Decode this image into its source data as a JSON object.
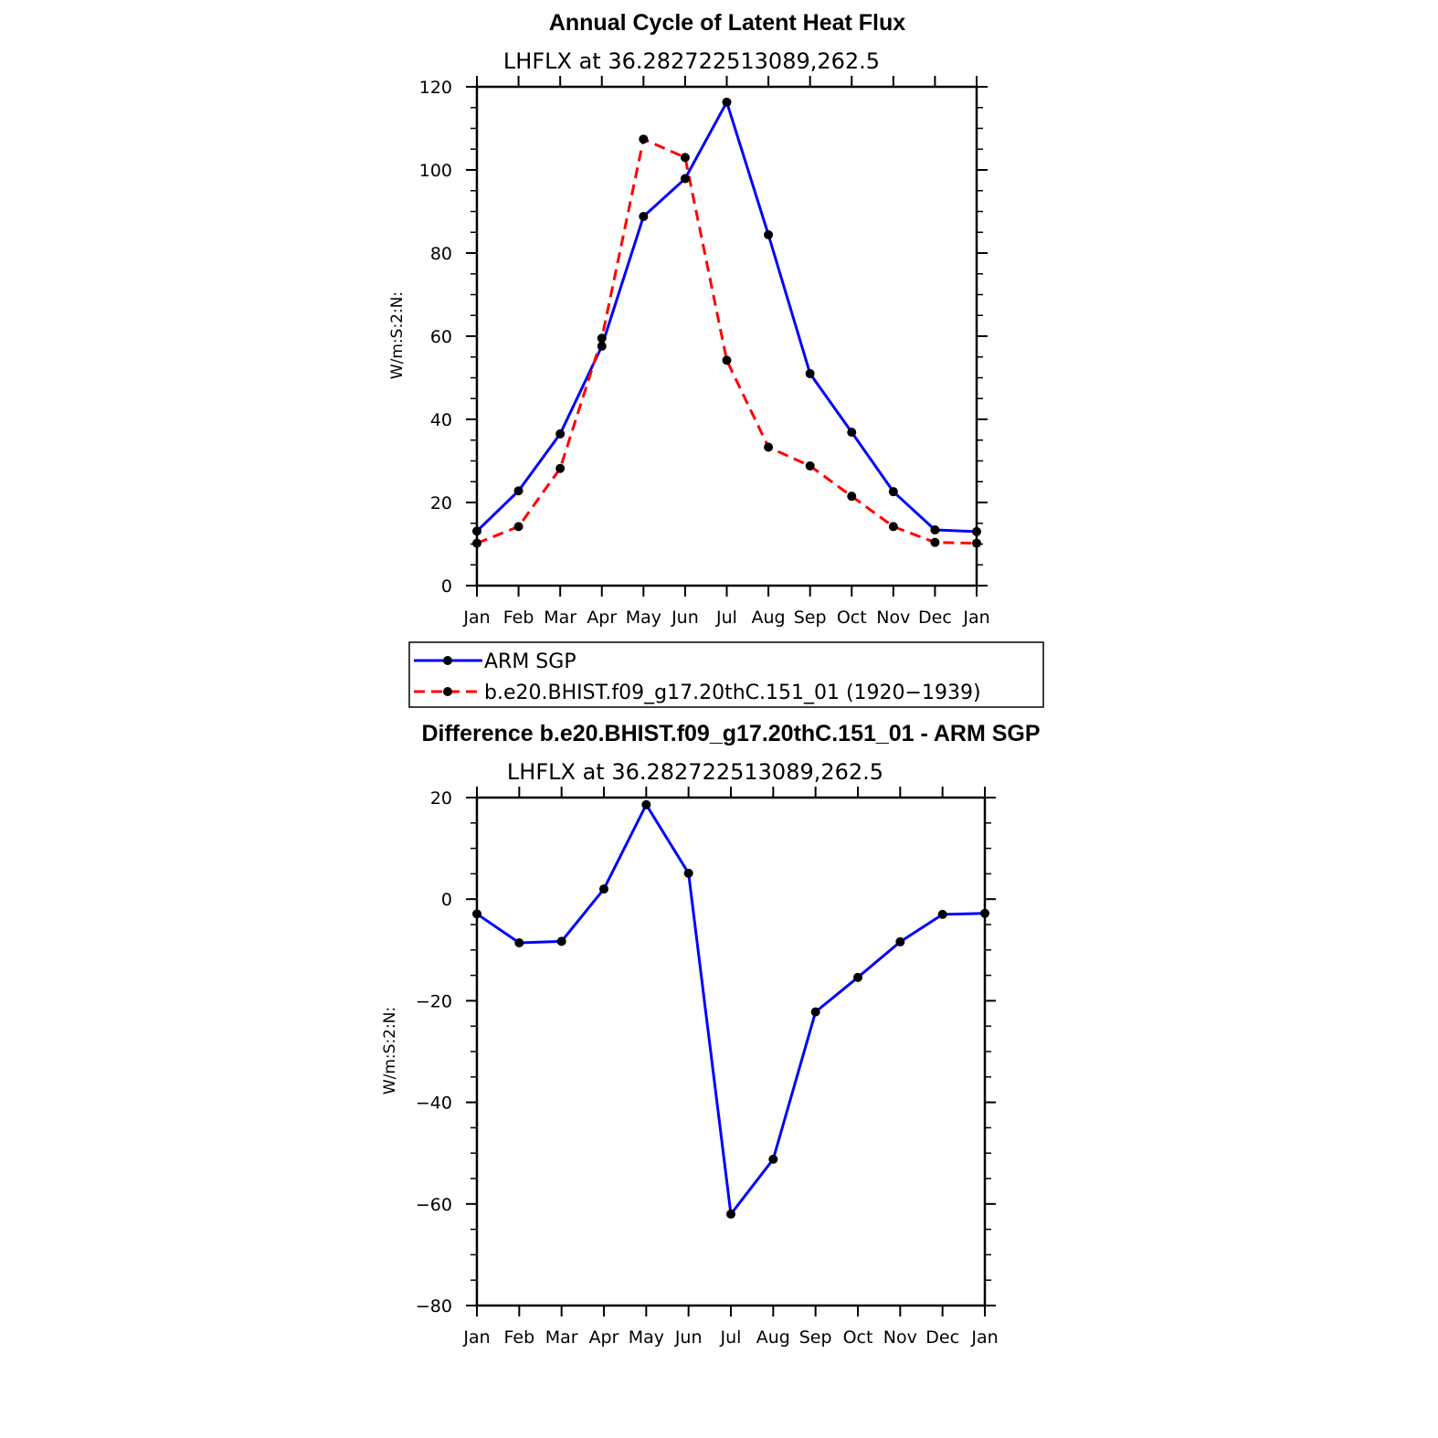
{
  "chart_data": [
    {
      "type": "line",
      "title": "Annual Cycle of Latent Heat Flux",
      "subtitle": "LHFLX  at  36.282722513089,262.5",
      "ylabel": "W/m:S:2:N:",
      "xlabel": "",
      "categories": [
        "Jan",
        "Feb",
        "Mar",
        "Apr",
        "May",
        "Jun",
        "Jul",
        "Aug",
        "Sep",
        "Oct",
        "Nov",
        "Dec",
        "Jan"
      ],
      "ylim": [
        0,
        120
      ],
      "yticks": [
        0,
        20,
        40,
        60,
        80,
        100,
        120
      ],
      "yticks_labels": [
        "0",
        "20",
        "40",
        "60",
        "80",
        "100",
        "120"
      ],
      "series": [
        {
          "name": "ARM  SGP",
          "color": "#0000ff",
          "dash": "solid",
          "values": [
            13.1,
            22.8,
            36.5,
            57.6,
            88.8,
            97.9,
            116.3,
            84.4,
            51.0,
            36.9,
            22.6,
            13.4,
            13.0
          ]
        },
        {
          "name": "b.e20.BHIST.f09_g17.20thC.151_01  (1920−1939)",
          "color": "#ff0000",
          "dash": "dashed",
          "values": [
            10.2,
            14.2,
            28.2,
            59.5,
            107.4,
            103.0,
            54.2,
            33.3,
            28.8,
            21.5,
            14.2,
            10.4,
            10.2
          ]
        }
      ],
      "legend": "below"
    },
    {
      "type": "line",
      "title": "Difference b.e20.BHIST.f09_g17.20thC.151_01 - ARM SGP",
      "subtitle": "LHFLX  at  36.282722513089,262.5",
      "ylabel": "W/m:S:2:N:",
      "xlabel": "",
      "categories": [
        "Jan",
        "Feb",
        "Mar",
        "Apr",
        "May",
        "Jun",
        "Jul",
        "Aug",
        "Sep",
        "Oct",
        "Nov",
        "Dec",
        "Jan"
      ],
      "ylim": [
        -80,
        20
      ],
      "yticks": [
        -80,
        -60,
        -40,
        -20,
        0,
        20
      ],
      "yticks_labels": [
        "−80",
        "−60",
        "−40",
        "−20",
        "0",
        "20"
      ],
      "series": [
        {
          "name": "Difference",
          "color": "#0000ff",
          "dash": "solid",
          "values": [
            -2.9,
            -8.6,
            -8.3,
            2.0,
            18.6,
            5.1,
            -62.0,
            -51.2,
            -22.2,
            -15.4,
            -8.4,
            -3.0,
            -2.8
          ]
        }
      ]
    }
  ]
}
